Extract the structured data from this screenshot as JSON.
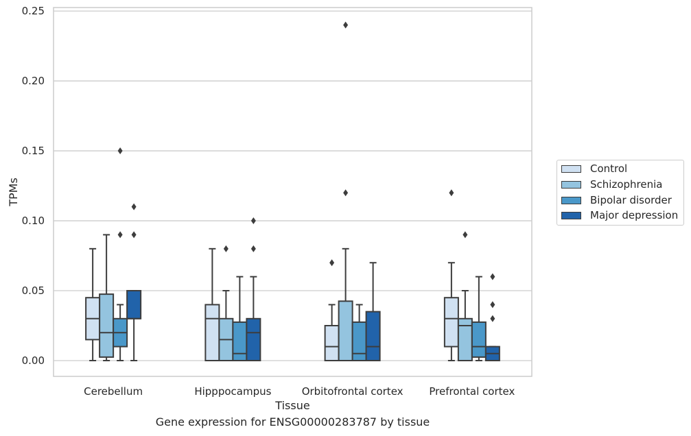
{
  "chart_data": {
    "type": "box",
    "title": "",
    "caption": "Gene expression for ENSG00000283787 by tissue",
    "xlabel": "Tissue",
    "ylabel": "TPMs",
    "ylim": [
      -0.011,
      0.252
    ],
    "yticks": [
      0.0,
      0.05,
      0.1,
      0.15,
      0.2,
      0.25
    ],
    "ytick_labels": [
      "0.00",
      "0.05",
      "0.10",
      "0.15",
      "0.20",
      "0.25"
    ],
    "grid": "horizontal",
    "legend_position": "right-outside",
    "categories": [
      "Cerebellum",
      "Hipppocampus",
      "Orbitofrontal cortex",
      "Prefrontal cortex"
    ],
    "series": [
      {
        "name": "Control",
        "color": "#d0e1f2",
        "boxes": [
          {
            "whisker_low": 0.0,
            "q1": 0.015,
            "median": 0.03,
            "q3": 0.045,
            "whisker_high": 0.08,
            "outliers": []
          },
          {
            "whisker_low": 0.0,
            "q1": 0.0,
            "median": 0.03,
            "q3": 0.04,
            "whisker_high": 0.08,
            "outliers": []
          },
          {
            "whisker_low": 0.0,
            "q1": 0.0,
            "median": 0.01,
            "q3": 0.025,
            "whisker_high": 0.04,
            "outliers": [
              0.07
            ]
          },
          {
            "whisker_low": 0.0,
            "q1": 0.01,
            "median": 0.03,
            "q3": 0.045,
            "whisker_high": 0.07,
            "outliers": [
              0.12
            ]
          }
        ]
      },
      {
        "name": "Schizophrenia",
        "color": "#94c4df",
        "boxes": [
          {
            "whisker_low": 0.0,
            "q1": 0.0025,
            "median": 0.02,
            "q3": 0.0475,
            "whisker_high": 0.09,
            "outliers": []
          },
          {
            "whisker_low": 0.0,
            "q1": 0.0,
            "median": 0.015,
            "q3": 0.03,
            "whisker_high": 0.05,
            "outliers": [
              0.08
            ]
          },
          {
            "whisker_low": 0.0,
            "q1": 0.0,
            "median": 0.0,
            "q3": 0.0425,
            "whisker_high": 0.08,
            "outliers": [
              0.12,
              0.24
            ]
          },
          {
            "whisker_low": 0.0,
            "q1": 0.0,
            "median": 0.025,
            "q3": 0.03,
            "whisker_high": 0.05,
            "outliers": [
              0.09
            ]
          }
        ]
      },
      {
        "name": "Bipolar disorder",
        "color": "#4a98c9",
        "boxes": [
          {
            "whisker_low": 0.0,
            "q1": 0.01,
            "median": 0.02,
            "q3": 0.03,
            "whisker_high": 0.04,
            "outliers": [
              0.09,
              0.15
            ]
          },
          {
            "whisker_low": 0.0,
            "q1": 0.0,
            "median": 0.005,
            "q3": 0.0275,
            "whisker_high": 0.06,
            "outliers": []
          },
          {
            "whisker_low": 0.0,
            "q1": 0.0,
            "median": 0.005,
            "q3": 0.0275,
            "whisker_high": 0.04,
            "outliers": []
          },
          {
            "whisker_low": 0.0,
            "q1": 0.0025,
            "median": 0.01,
            "q3": 0.0275,
            "whisker_high": 0.06,
            "outliers": []
          }
        ]
      },
      {
        "name": "Major depression",
        "color": "#2163aa",
        "boxes": [
          {
            "whisker_low": 0.0,
            "q1": 0.03,
            "median": 0.03,
            "q3": 0.05,
            "whisker_high": 0.05,
            "outliers": [
              0.09,
              0.11
            ]
          },
          {
            "whisker_low": 0.0,
            "q1": 0.0,
            "median": 0.02,
            "q3": 0.03,
            "whisker_high": 0.06,
            "outliers": [
              0.08,
              0.1
            ]
          },
          {
            "whisker_low": 0.0,
            "q1": 0.0,
            "median": 0.01,
            "q3": 0.035,
            "whisker_high": 0.07,
            "outliers": []
          },
          {
            "whisker_low": 0.0,
            "q1": 0.0,
            "median": 0.005,
            "q3": 0.01,
            "whisker_high": 0.01,
            "outliers": [
              0.03,
              0.04,
              0.06
            ]
          }
        ]
      }
    ]
  }
}
